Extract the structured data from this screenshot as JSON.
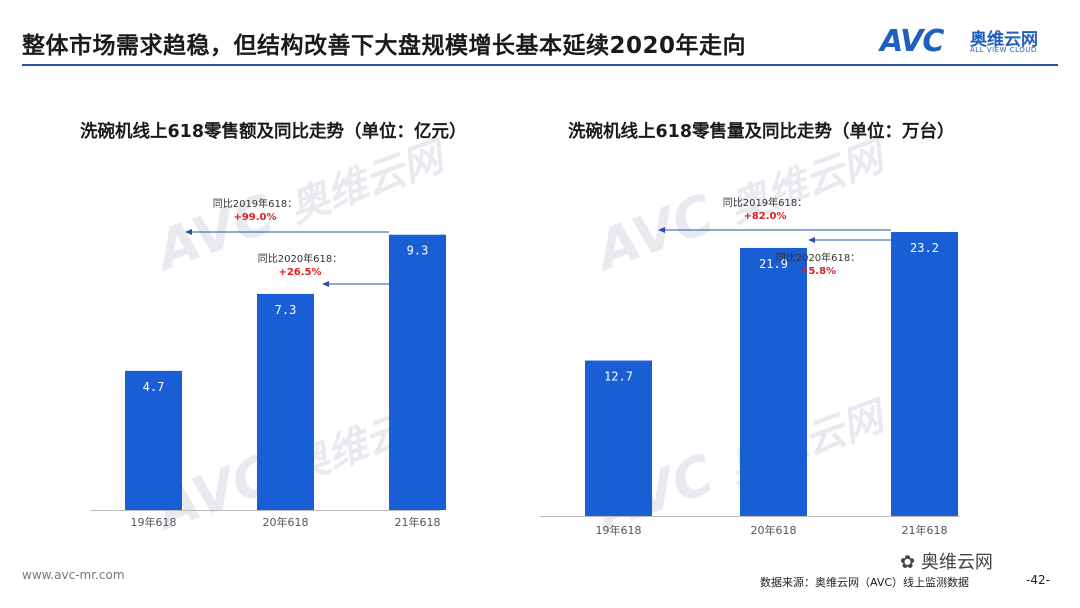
{
  "header": {
    "title": "整体市场需求趋稳，但结构改善下大盘规模增长基本延续2020年走向",
    "logo_mark": "AVC",
    "logo_cn": "奥维云网",
    "logo_en": "ALL VIEW CLOUD"
  },
  "watermark": {
    "mark": "AVC",
    "cn": "奥维云网",
    "en": "ALL VIEW CLOUD"
  },
  "chart_data": [
    {
      "type": "bar",
      "title": "洗碗机线上618零售额及同比走势（单位：亿元）",
      "categories": [
        "19年618",
        "20年618",
        "21年618"
      ],
      "values": [
        4.7,
        7.3,
        9.3
      ],
      "value_labels": [
        "4.7",
        "7.3",
        "9.3"
      ],
      "ylim": [
        0,
        10
      ],
      "grid": false,
      "annotations": [
        {
          "label": "同比2019年618：",
          "value": "+99.0%"
        },
        {
          "label": "同比2020年618：",
          "value": "+26.5%"
        }
      ]
    },
    {
      "type": "bar",
      "title": "洗碗机线上618零售量及同比走势（单位：万台）",
      "categories": [
        "19年618",
        "20年618",
        "21年618"
      ],
      "values": [
        12.7,
        21.9,
        23.2
      ],
      "value_labels": [
        "12.7",
        "21.9",
        "23.2"
      ],
      "ylim": [
        0,
        25
      ],
      "grid": false,
      "annotations": [
        {
          "label": "同比2019年618：",
          "value": "+82.0%"
        },
        {
          "label": "同比2020年618：",
          "value": "+5.8%"
        }
      ]
    }
  ],
  "footer": {
    "url": "www.avc-mr.com",
    "source": "数据来源：奥维云网（AVC）线上监测数据",
    "page": "-42-",
    "wechat": "奥维云网"
  }
}
